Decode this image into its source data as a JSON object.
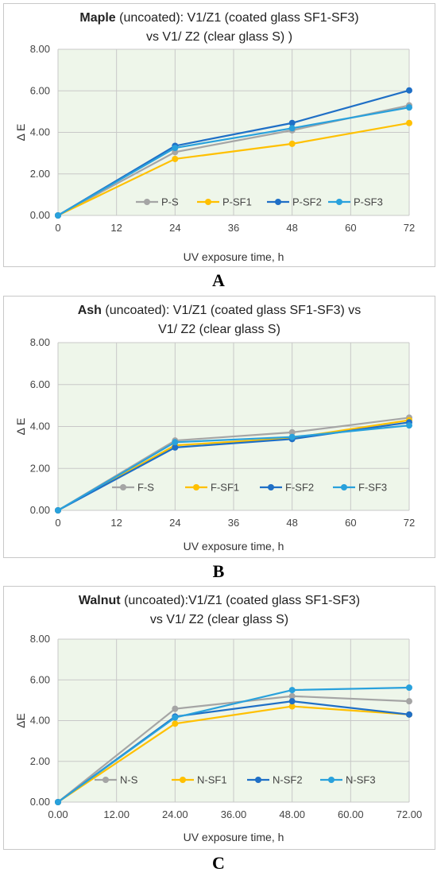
{
  "colors": {
    "plot_bg": "#eef6ea",
    "grid": "#c8c8c8",
    "series": [
      "#a5a5a5",
      "#ffc000",
      "#1f6fc6",
      "#29a1dc"
    ]
  },
  "chart_data": [
    {
      "type": "line",
      "title_bold": "Maple",
      "title_lines": [
        " (uncoated): V1/Z1 (coated glass SF1-SF3)",
        "vs V1/ Z2 (clear glass S) )"
      ],
      "ylabel": "Δ E",
      "xlabel": "UV exposure time, h",
      "xticks": [
        "0",
        "12",
        "24",
        "36",
        "48",
        "60",
        "72"
      ],
      "yticks": [
        "0.00",
        "2.00",
        "4.00",
        "6.00",
        "8.00"
      ],
      "xlim": [
        0,
        72
      ],
      "ylim": [
        0,
        8
      ],
      "grid": true,
      "legend_position": "inside-bottom-right",
      "x": [
        0,
        24,
        48,
        72
      ],
      "series": [
        {
          "name": "P-S",
          "values": [
            0,
            3.05,
            4.1,
            5.3
          ]
        },
        {
          "name": "P-SF1",
          "values": [
            0,
            2.72,
            3.45,
            4.45
          ]
        },
        {
          "name": "P-SF2",
          "values": [
            0,
            3.35,
            4.45,
            6.02
          ]
        },
        {
          "name": "P-SF3",
          "values": [
            0,
            3.25,
            4.2,
            5.2
          ]
        }
      ],
      "panel_letter": "A"
    },
    {
      "type": "line",
      "title_bold": "Ash",
      "title_lines": [
        " (uncoated):  V1/Z1 (coated glass SF1-SF3) vs",
        "V1/ Z2 (clear glass S)"
      ],
      "ylabel": "Δ E",
      "xlabel": "UV exposure time, h",
      "xticks": [
        "0",
        "12",
        "24",
        "36",
        "48",
        "60",
        "72"
      ],
      "yticks": [
        "0.00",
        "2.00",
        "4.00",
        "6.00",
        "8.00"
      ],
      "xlim": [
        0,
        72
      ],
      "ylim": [
        0,
        8
      ],
      "grid": true,
      "legend_position": "inside-bottom",
      "x": [
        0,
        24,
        48,
        72
      ],
      "series": [
        {
          "name": "F-S",
          "values": [
            0,
            3.33,
            3.72,
            4.42
          ]
        },
        {
          "name": "F-SF1",
          "values": [
            0,
            3.1,
            3.45,
            4.3
          ]
        },
        {
          "name": "F-SF2",
          "values": [
            0,
            3.0,
            3.4,
            4.2
          ]
        },
        {
          "name": "F-SF3",
          "values": [
            0,
            3.25,
            3.5,
            4.05
          ]
        }
      ],
      "panel_letter": "B"
    },
    {
      "type": "line",
      "title_bold": "Walnut",
      "title_lines": [
        " (uncoated):V1/Z1 (coated glass SF1-SF3)",
        "vs V1/ Z2 (clear glass S)"
      ],
      "ylabel": "ΔE",
      "xlabel": "UV exposure time, h",
      "xticks": [
        "0.00",
        "12.00",
        "24.00",
        "36.00",
        "48.00",
        "60.00",
        "72.00"
      ],
      "yticks": [
        "0.00",
        "2.00",
        "4.00",
        "6.00",
        "8.00"
      ],
      "xlim": [
        0,
        72
      ],
      "ylim": [
        0,
        8
      ],
      "grid": true,
      "legend_position": "inside-bottom",
      "x": [
        0,
        24,
        48,
        72
      ],
      "series": [
        {
          "name": "N-S",
          "values": [
            0,
            4.58,
            5.2,
            4.95
          ]
        },
        {
          "name": "N-SF1",
          "values": [
            0,
            3.85,
            4.7,
            4.3
          ]
        },
        {
          "name": "N-SF2",
          "values": [
            0,
            4.2,
            4.95,
            4.3
          ]
        },
        {
          "name": "N-SF3",
          "values": [
            0,
            4.15,
            5.5,
            5.62
          ]
        }
      ],
      "panel_letter": "C"
    }
  ]
}
